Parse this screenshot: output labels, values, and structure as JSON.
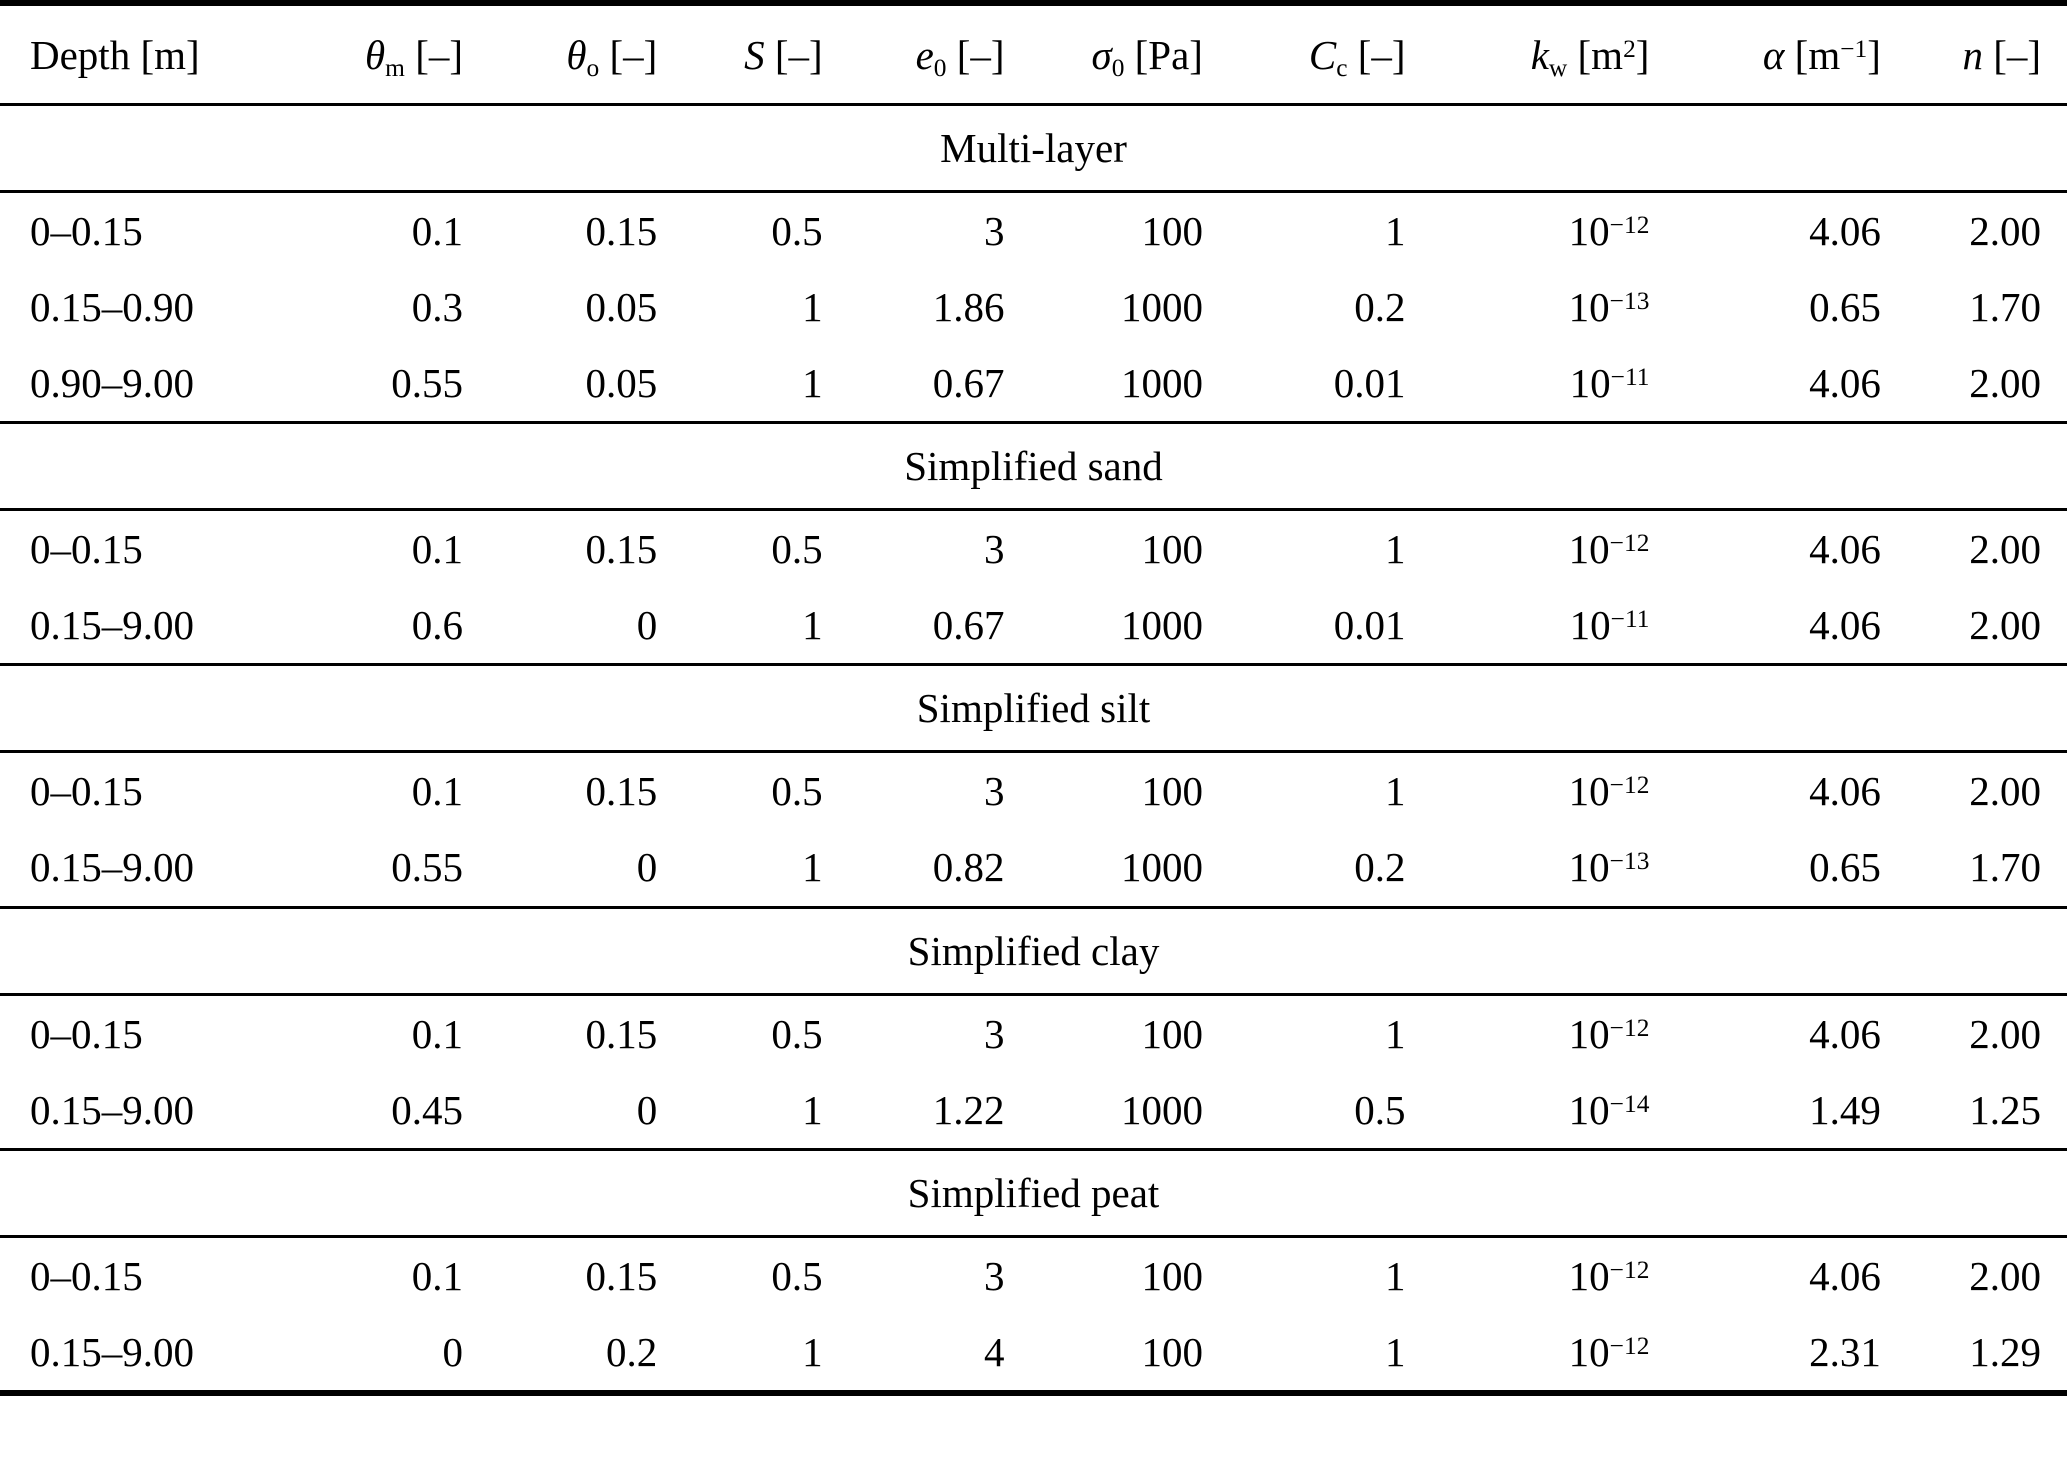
{
  "page": {
    "background": "#ffffff",
    "text_color": "#000000",
    "rule_color": "#000000"
  },
  "table": {
    "columns": [
      {
        "id": "depth",
        "segs": [
          {
            "t": "text",
            "v": "Depth [m]"
          }
        ]
      },
      {
        "id": "thetam",
        "segs": [
          {
            "t": "i",
            "v": "θ"
          },
          {
            "t": "sub",
            "v": "m"
          },
          {
            "t": "text",
            "v": " [–]"
          }
        ]
      },
      {
        "id": "thetao",
        "segs": [
          {
            "t": "i",
            "v": "θ"
          },
          {
            "t": "sub",
            "v": "o"
          },
          {
            "t": "text",
            "v": " [–]"
          }
        ]
      },
      {
        "id": "s",
        "segs": [
          {
            "t": "i",
            "v": "S"
          },
          {
            "t": "text",
            "v": " [–]"
          }
        ]
      },
      {
        "id": "e0",
        "segs": [
          {
            "t": "i",
            "v": "e"
          },
          {
            "t": "sub",
            "v": "0"
          },
          {
            "t": "text",
            "v": " [–]"
          }
        ]
      },
      {
        "id": "sigma0",
        "segs": [
          {
            "t": "i",
            "v": "σ"
          },
          {
            "t": "sub",
            "v": "0"
          },
          {
            "t": "text",
            "v": " [Pa]"
          }
        ]
      },
      {
        "id": "cc",
        "segs": [
          {
            "t": "i",
            "v": "C"
          },
          {
            "t": "sub",
            "v": "c"
          },
          {
            "t": "text",
            "v": " [–]"
          }
        ]
      },
      {
        "id": "kw",
        "segs": [
          {
            "t": "i",
            "v": "k"
          },
          {
            "t": "sub",
            "v": "w"
          },
          {
            "t": "text",
            "v": " [m"
          },
          {
            "t": "sup",
            "v": "2"
          },
          {
            "t": "text",
            "v": "]"
          }
        ]
      },
      {
        "id": "alpha",
        "segs": [
          {
            "t": "i",
            "v": "α"
          },
          {
            "t": "text",
            "v": " [m"
          },
          {
            "t": "sup",
            "v": "−1"
          },
          {
            "t": "text",
            "v": "]"
          }
        ]
      },
      {
        "id": "n",
        "segs": [
          {
            "t": "i",
            "v": "n"
          },
          {
            "t": "text",
            "v": " [–]"
          }
        ]
      }
    ],
    "sections": [
      {
        "title": "Multi-layer",
        "rows": [
          [
            "0–0.15",
            "0.1",
            "0.15",
            "0.5",
            "3",
            "100",
            "1",
            "10^−12",
            "4.06",
            "2.00"
          ],
          [
            "0.15–0.90",
            "0.3",
            "0.05",
            "1",
            "1.86",
            "1000",
            "0.2",
            "10^−13",
            "0.65",
            "1.70"
          ],
          [
            "0.90–9.00",
            "0.55",
            "0.05",
            "1",
            "0.67",
            "1000",
            "0.01",
            "10^−11",
            "4.06",
            "2.00"
          ]
        ]
      },
      {
        "title": "Simplified sand",
        "rows": [
          [
            "0–0.15",
            "0.1",
            "0.15",
            "0.5",
            "3",
            "100",
            "1",
            "10^−12",
            "4.06",
            "2.00"
          ],
          [
            "0.15–9.00",
            "0.6",
            "0",
            "1",
            "0.67",
            "1000",
            "0.01",
            "10^−11",
            "4.06",
            "2.00"
          ]
        ]
      },
      {
        "title": "Simplified silt",
        "rows": [
          [
            "0–0.15",
            "0.1",
            "0.15",
            "0.5",
            "3",
            "100",
            "1",
            "10^−12",
            "4.06",
            "2.00"
          ],
          [
            "0.15–9.00",
            "0.55",
            "0",
            "1",
            "0.82",
            "1000",
            "0.2",
            "10^−13",
            "0.65",
            "1.70"
          ]
        ]
      },
      {
        "title": "Simplified clay",
        "rows": [
          [
            "0–0.15",
            "0.1",
            "0.15",
            "0.5",
            "3",
            "100",
            "1",
            "10^−12",
            "4.06",
            "2.00"
          ],
          [
            "0.15–9.00",
            "0.45",
            "0",
            "1",
            "1.22",
            "1000",
            "0.5",
            "10^−14",
            "1.49",
            "1.25"
          ]
        ]
      },
      {
        "title": "Simplified peat",
        "rows": [
          [
            "0–0.15",
            "0.1",
            "0.15",
            "0.5",
            "3",
            "100",
            "1",
            "10^−12",
            "4.06",
            "2.00"
          ],
          [
            "0.15–9.00",
            "0",
            "0.2",
            "1",
            "4",
            "100",
            "1",
            "10^−12",
            "2.31",
            "1.29"
          ]
        ]
      }
    ]
  }
}
